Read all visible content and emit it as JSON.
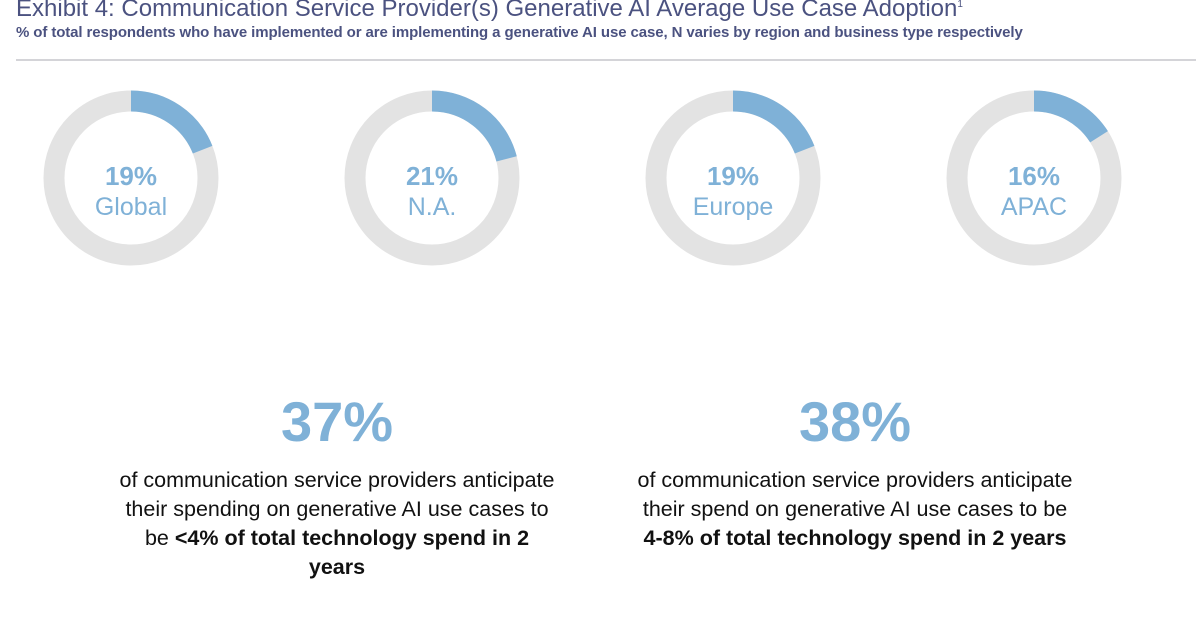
{
  "header": {
    "title": "Exhibit 4: Communication Service Provider(s) Generative AI Average Use Case Adoption",
    "title_superscript": "1",
    "subtitle": "% of total respondents who have implemented or are implementing a generative AI use case, N varies by region and business type respectively"
  },
  "colors": {
    "accent": "#7fb1d7",
    "track": "#e3e3e3",
    "title": "#4b5280"
  },
  "chart_data": {
    "type": "pie",
    "style": "donut",
    "categories": [
      "Global",
      "N.A.",
      "Europe",
      "APAC"
    ],
    "values": [
      19,
      21,
      19,
      16
    ],
    "value_labels": [
      "19%",
      "21%",
      "19%",
      "16%"
    ],
    "unit": "%"
  },
  "stats": [
    {
      "value": "37%",
      "text_before": "of communication service providers anticipate their spending on generative AI use cases to be ",
      "text_bold": "<4% of total technology spend in 2 years"
    },
    {
      "value": "38%",
      "text_before": "of communication service providers anticipate their spend on generative AI use cases to be ",
      "text_bold": "4-8% of total technology spend in 2 years"
    }
  ]
}
